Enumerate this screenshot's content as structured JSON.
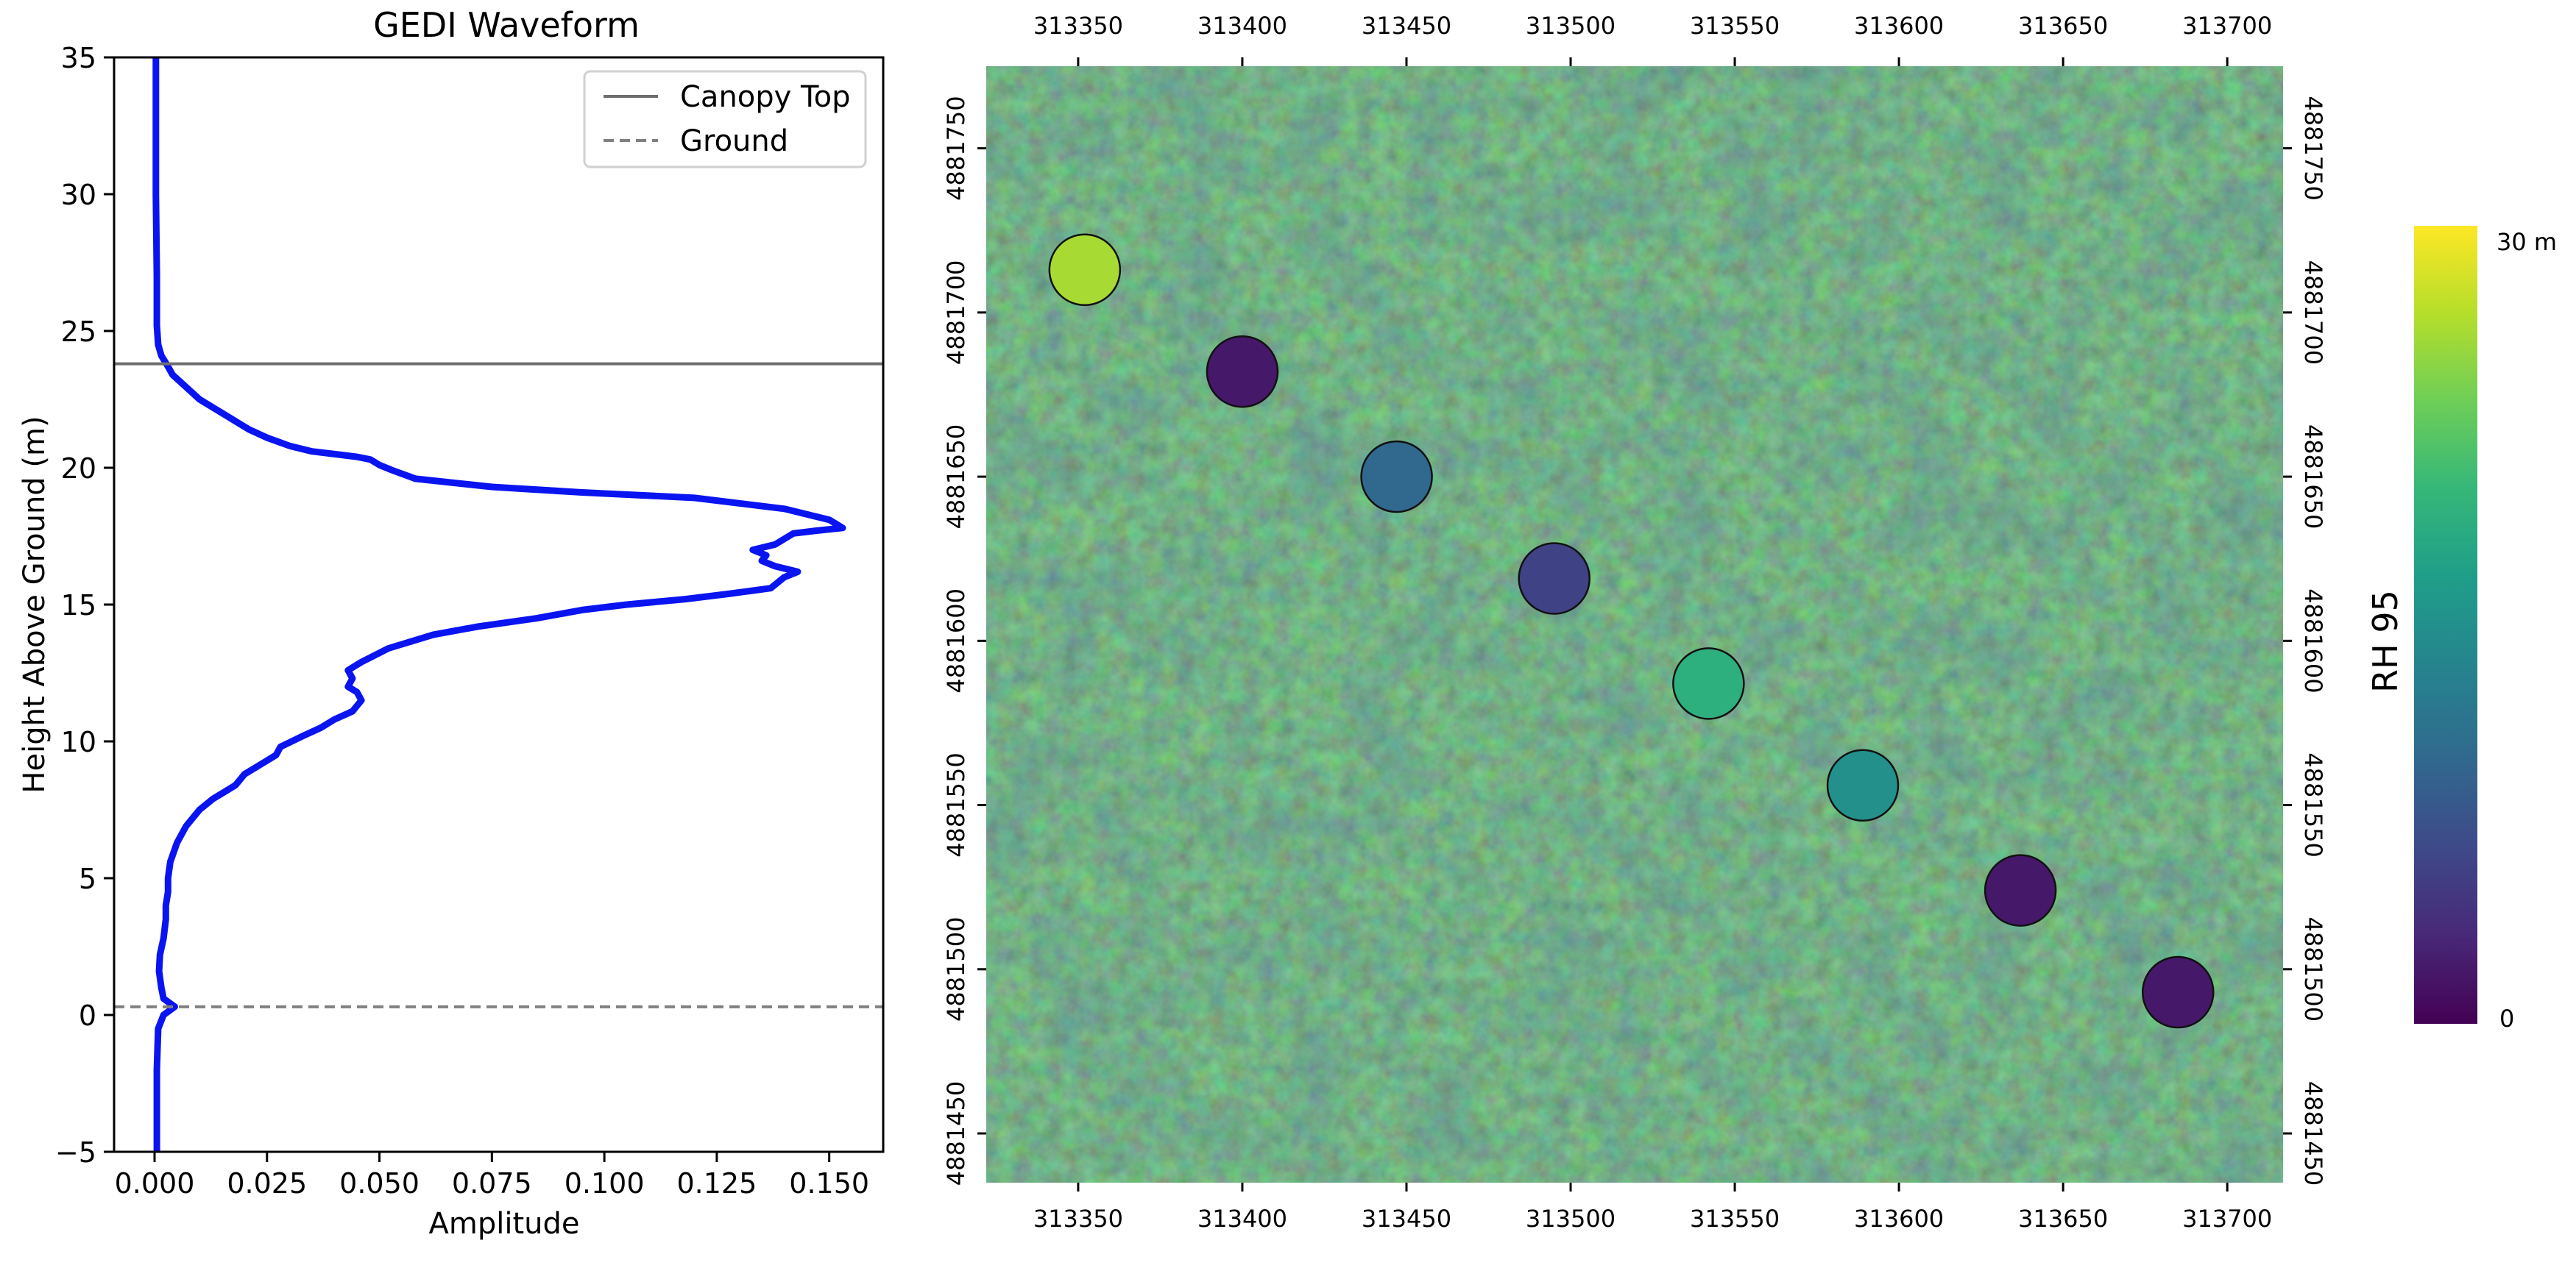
{
  "chart_data": [
    {
      "type": "line",
      "title": "GEDI Waveform",
      "xlabel": "Amplitude",
      "ylabel": "Height Above Ground (m)",
      "xlim": [
        -0.009,
        0.162
      ],
      "ylim": [
        -5,
        35
      ],
      "xticks": [
        "0.000",
        "0.025",
        "0.050",
        "0.075",
        "0.100",
        "0.125",
        "0.150"
      ],
      "yticks": [
        "−5",
        "0",
        "5",
        "10",
        "15",
        "20",
        "25",
        "30",
        "35"
      ],
      "grid": false,
      "legend": "top-right",
      "waveform_color": "#0a14f0",
      "reference_lines": [
        {
          "name": "Canopy Top",
          "y": 23.8,
          "style": "solid",
          "color": "#6e6e6e"
        },
        {
          "name": "Ground",
          "y": 0.3,
          "style": "dashed",
          "color": "#808080"
        }
      ],
      "series": [
        {
          "points": [
            [
              0.0005,
              -5
            ],
            [
              0.0005,
              -2
            ],
            [
              0.0008,
              -0.5
            ],
            [
              0.002,
              0.0
            ],
            [
              0.0045,
              0.3
            ],
            [
              0.002,
              0.6
            ],
            [
              0.0015,
              1.0
            ],
            [
              0.001,
              1.6
            ],
            [
              0.0012,
              2.2
            ],
            [
              0.002,
              2.8
            ],
            [
              0.0025,
              3.5
            ],
            [
              0.0025,
              4.0
            ],
            [
              0.003,
              4.5
            ],
            [
              0.003,
              5.0
            ],
            [
              0.0035,
              5.6
            ],
            [
              0.005,
              6.3
            ],
            [
              0.007,
              6.9
            ],
            [
              0.01,
              7.5
            ],
            [
              0.013,
              7.9
            ],
            [
              0.016,
              8.2
            ],
            [
              0.018,
              8.4
            ],
            [
              0.02,
              8.8
            ],
            [
              0.024,
              9.2
            ],
            [
              0.027,
              9.5
            ],
            [
              0.028,
              9.8
            ],
            [
              0.033,
              10.2
            ],
            [
              0.037,
              10.5
            ],
            [
              0.04,
              10.8
            ],
            [
              0.044,
              11.1
            ],
            [
              0.046,
              11.5
            ],
            [
              0.045,
              11.8
            ],
            [
              0.043,
              12.0
            ],
            [
              0.044,
              12.3
            ],
            [
              0.043,
              12.6
            ],
            [
              0.046,
              12.9
            ],
            [
              0.052,
              13.4
            ],
            [
              0.062,
              13.9
            ],
            [
              0.072,
              14.2
            ],
            [
              0.085,
              14.5
            ],
            [
              0.095,
              14.8
            ],
            [
              0.105,
              15.0
            ],
            [
              0.118,
              15.2
            ],
            [
              0.128,
              15.4
            ],
            [
              0.137,
              15.6
            ],
            [
              0.14,
              16.0
            ],
            [
              0.143,
              16.2
            ],
            [
              0.138,
              16.4
            ],
            [
              0.135,
              16.6
            ],
            [
              0.136,
              16.8
            ],
            [
              0.133,
              17.0
            ],
            [
              0.138,
              17.2
            ],
            [
              0.142,
              17.6
            ],
            [
              0.147,
              17.7
            ],
            [
              0.153,
              17.8
            ],
            [
              0.15,
              18.1
            ],
            [
              0.14,
              18.5
            ],
            [
              0.12,
              18.9
            ],
            [
              0.095,
              19.1
            ],
            [
              0.075,
              19.3
            ],
            [
              0.058,
              19.6
            ],
            [
              0.053,
              19.9
            ],
            [
              0.05,
              20.1
            ],
            [
              0.048,
              20.3
            ],
            [
              0.045,
              20.4
            ],
            [
              0.04,
              20.5
            ],
            [
              0.035,
              20.6
            ],
            [
              0.03,
              20.8
            ],
            [
              0.025,
              21.1
            ],
            [
              0.021,
              21.4
            ],
            [
              0.019,
              21.6
            ],
            [
              0.017,
              21.8
            ],
            [
              0.014,
              22.1
            ],
            [
              0.01,
              22.5
            ],
            [
              0.008,
              22.8
            ],
            [
              0.006,
              23.1
            ],
            [
              0.004,
              23.4
            ],
            [
              0.003,
              23.7
            ],
            [
              0.0015,
              24.1
            ],
            [
              0.0008,
              24.5
            ],
            [
              0.0005,
              25.2
            ],
            [
              0.0005,
              27
            ],
            [
              0.0003,
              30
            ],
            [
              0.0003,
              35
            ]
          ]
        }
      ]
    },
    {
      "type": "scatter",
      "colorbar_label": "RH 95",
      "colorbar_tick_low": "0",
      "colorbar_tick_high": "30 m",
      "colorbar_range": [
        0,
        30
      ],
      "background": "aerial forest imagery",
      "xlim": [
        313322,
        313717
      ],
      "ylim": [
        4881435,
        4881775
      ],
      "xticks": [
        "313350",
        "313400",
        "313450",
        "313500",
        "313550",
        "313600",
        "313650",
        "313700"
      ],
      "yticks": [
        "4881450",
        "4881500",
        "4881550",
        "4881600",
        "4881650",
        "4881700",
        "4881750"
      ],
      "colormap": [
        "#440154",
        "#482878",
        "#3e4989",
        "#31688e",
        "#26828e",
        "#1f9e89",
        "#35b779",
        "#6ece58",
        "#b5de2b",
        "#fde725"
      ],
      "points": [
        {
          "x": 313352,
          "y": 4881713,
          "rh95": 26
        },
        {
          "x": 313400,
          "y": 4881682,
          "rh95": 2
        },
        {
          "x": 313447,
          "y": 4881650,
          "rh95": 10
        },
        {
          "x": 313495,
          "y": 4881619,
          "rh95": 6
        },
        {
          "x": 313542,
          "y": 4881587,
          "rh95": 19
        },
        {
          "x": 313589,
          "y": 4881556,
          "rh95": 15
        },
        {
          "x": 313637,
          "y": 4881524,
          "rh95": 2
        },
        {
          "x": 313685,
          "y": 4881493,
          "rh95": 2
        }
      ]
    }
  ]
}
